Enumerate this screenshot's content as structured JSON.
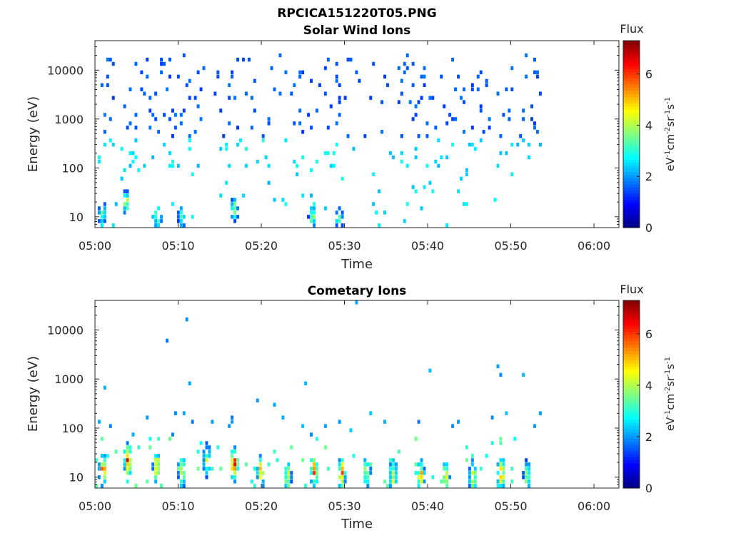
{
  "figure_title": "RPCICA151220T05.PNG",
  "colors": {
    "axis": "#262626",
    "colormap": [
      "#00007f",
      "#0000ff",
      "#007fff",
      "#00ffff",
      "#7fff7f",
      "#ffff00",
      "#ff7f00",
      "#ff0000",
      "#7f0000"
    ]
  },
  "chart_data": [
    {
      "type": "heatmap",
      "title": "Solar Wind Ions",
      "xlabel": "Time",
      "ylabel": "Energy (eV)",
      "yscale": "log",
      "xlim": [
        "05:00",
        "06:03"
      ],
      "ylim": [
        6,
        40000
      ],
      "x_ticks": [
        "05:00",
        "05:10",
        "05:20",
        "05:30",
        "05:40",
        "05:50",
        "06:00"
      ],
      "y_ticks": [
        "10",
        "100",
        "1000",
        "10000"
      ],
      "colorbar": {
        "label": "Flux",
        "unit": "eV-1cm-2sr-1s-1",
        "range": [
          0,
          7.3
        ],
        "ticks": [
          "0",
          "2",
          "4",
          "6"
        ]
      },
      "data_extent_minutes": [
        0,
        53.5
      ],
      "hotspots": [
        {
          "t": 0.7,
          "e": 12,
          "v": 4.2
        },
        {
          "t": 3.6,
          "e": 20,
          "v": 4.8
        },
        {
          "t": 7.4,
          "e": 10,
          "v": 4.6
        },
        {
          "t": 10.3,
          "e": 10,
          "v": 4.0
        },
        {
          "t": 16.6,
          "e": 14,
          "v": 4.6
        },
        {
          "t": 26.0,
          "e": 10,
          "v": 4.4
        },
        {
          "t": 29.2,
          "e": 9,
          "v": 4.2
        }
      ]
    },
    {
      "type": "heatmap",
      "title": "Cometary Ions",
      "xlabel": "Time",
      "ylabel": "Energy (eV)",
      "yscale": "log",
      "xlim": [
        "05:00",
        "06:03"
      ],
      "ylim": [
        6,
        40000
      ],
      "x_ticks": [
        "05:00",
        "05:10",
        "05:20",
        "05:30",
        "05:40",
        "05:50",
        "06:00"
      ],
      "y_ticks": [
        "10",
        "100",
        "1000",
        "10000"
      ],
      "colorbar": {
        "label": "Flux",
        "unit": "eV-1cm-2sr-1s-1",
        "range": [
          0,
          7.3
        ],
        "ticks": [
          "0",
          "2",
          "4",
          "6"
        ]
      },
      "data_extent_minutes": [
        0,
        53.5
      ],
      "hotspots": [
        {
          "t": 0.8,
          "e": 14,
          "v": 6.4
        },
        {
          "t": 3.8,
          "e": 22,
          "v": 6.8
        },
        {
          "t": 7.3,
          "e": 16,
          "v": 5.6
        },
        {
          "t": 10.3,
          "e": 13,
          "v": 5.2
        },
        {
          "t": 13.3,
          "e": 22,
          "v": 4.6
        },
        {
          "t": 16.6,
          "e": 18,
          "v": 7.0
        },
        {
          "t": 19.8,
          "e": 13,
          "v": 5.4
        },
        {
          "t": 23.0,
          "e": 10,
          "v": 5.0
        },
        {
          "t": 26.2,
          "e": 14,
          "v": 7.0
        },
        {
          "t": 29.5,
          "e": 12,
          "v": 6.2
        },
        {
          "t": 32.5,
          "e": 12,
          "v": 5.0
        },
        {
          "t": 35.7,
          "e": 11,
          "v": 5.4
        },
        {
          "t": 39.0,
          "e": 11,
          "v": 5.6
        },
        {
          "t": 42.0,
          "e": 10,
          "v": 5.4
        },
        {
          "t": 45.3,
          "e": 10,
          "v": 5.4
        },
        {
          "t": 48.7,
          "e": 12,
          "v": 6.0
        },
        {
          "t": 51.8,
          "e": 10,
          "v": 4.6
        }
      ]
    }
  ]
}
